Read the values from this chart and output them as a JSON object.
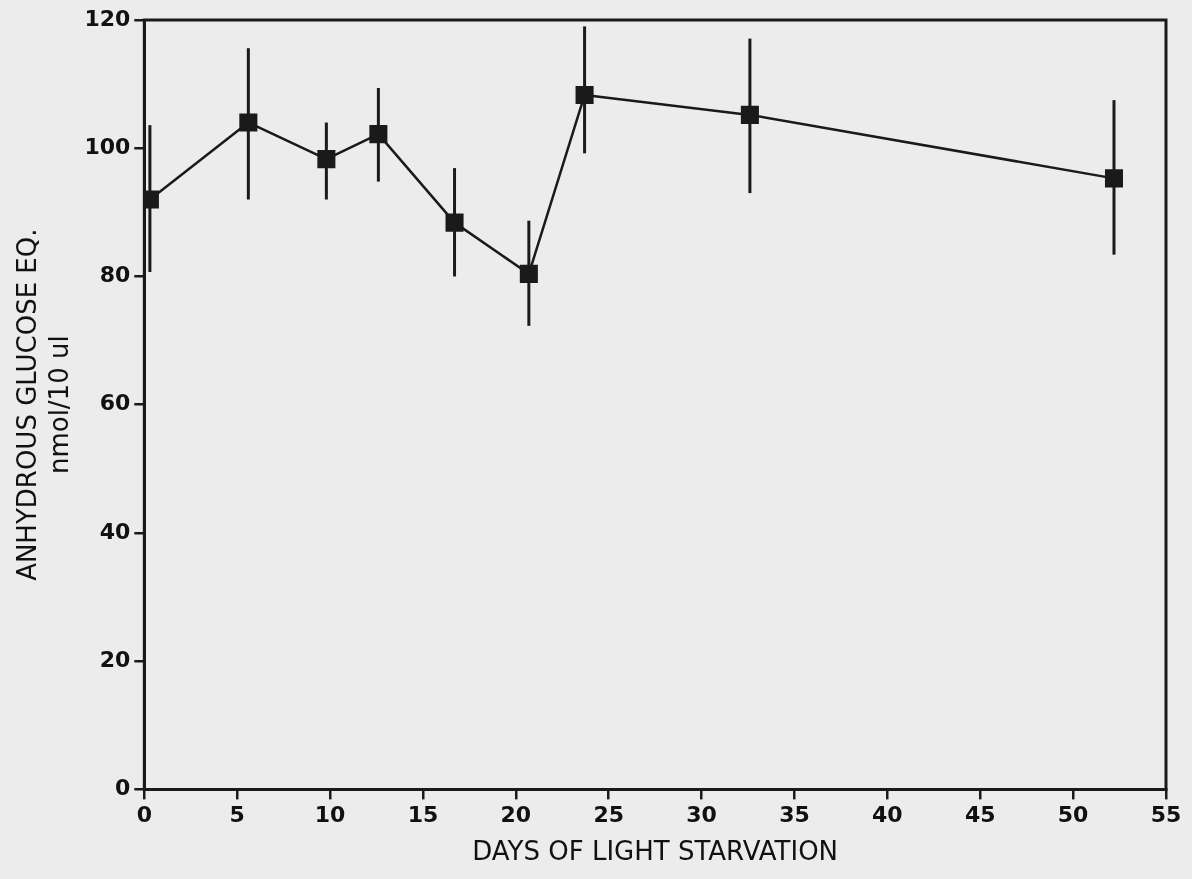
{
  "chart_data": {
    "type": "line",
    "xlabel": "DAYS OF LIGHT STARVATION",
    "ylabel": "ANHYDROUS GLUCOSE EQ.\nnmol/10 ul",
    "x": [
      0.3,
      5.6,
      9.8,
      12.6,
      16.7,
      20.7,
      23.7,
      32.6,
      52.2
    ],
    "series": [
      {
        "color": "#1a1a1a",
        "values": [
          92,
          104,
          98.3,
          102.2,
          88.4,
          80.4,
          108.3,
          105.2,
          95.3
        ],
        "errors": [
          [
            80.7,
            103.6
          ],
          [
            92,
            115.6
          ],
          [
            92,
            104
          ],
          [
            94.8,
            109.4
          ],
          [
            80,
            96.9
          ],
          [
            72.3,
            88.7
          ],
          [
            99.2,
            119
          ],
          [
            93,
            117.1
          ],
          [
            83.4,
            107.5
          ]
        ]
      }
    ],
    "xlim": [
      0,
      55
    ],
    "xticks": [
      0,
      5,
      10,
      15,
      20,
      25,
      30,
      35,
      40,
      45,
      50,
      55
    ],
    "ylim": [
      0,
      120
    ],
    "yticks": [
      0,
      20,
      40,
      60,
      80,
      100,
      120
    ],
    "grid": false,
    "legend": false,
    "marker": "square",
    "line_style": "solid"
  }
}
